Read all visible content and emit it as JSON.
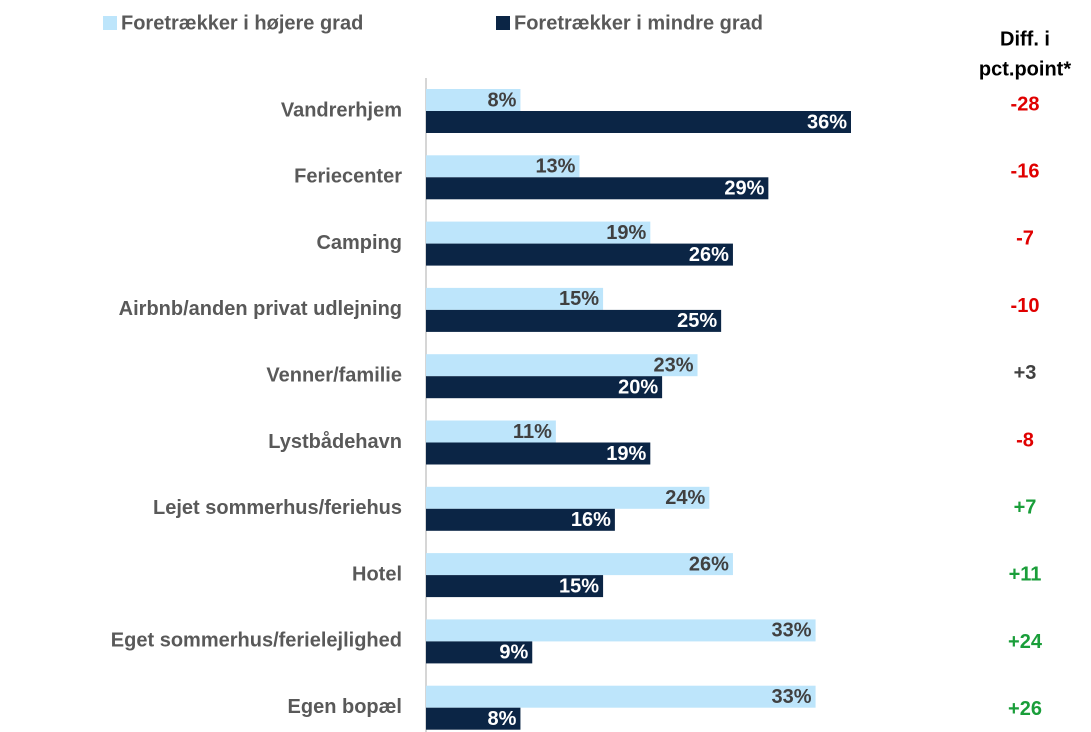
{
  "chart_data": {
    "type": "bar",
    "orientation": "horizontal",
    "categories": [
      "Vandrerhjem",
      "Feriecenter",
      "Camping",
      "Airbnb/anden privat udlejning",
      "Venner/familie",
      "Lystbådehavn",
      "Lejet sommerhus/feriehus",
      "Hotel",
      "Eget sommerhus/ferielejlighed",
      "Egen bopæl"
    ],
    "series": [
      {
        "name": "Foretrækker i højere grad",
        "color": "#bde5fb",
        "label_color": "#404040",
        "values": [
          8,
          13,
          19,
          15,
          23,
          11,
          24,
          26,
          33,
          33
        ],
        "value_labels": [
          "8%",
          "13%",
          "19%",
          "15%",
          "23%",
          "11%",
          "24%",
          "26%",
          "33%",
          "33%"
        ]
      },
      {
        "name": "Foretrækker i mindre grad",
        "color": "#0b2545",
        "label_color": "#ffffff",
        "values": [
          36,
          29,
          26,
          25,
          20,
          19,
          16,
          15,
          9,
          8
        ],
        "value_labels": [
          "36%",
          "29%",
          "26%",
          "25%",
          "20%",
          "19%",
          "16%",
          "15%",
          "9%",
          "8%"
        ]
      }
    ],
    "xlim": [
      0,
      36
    ],
    "diff": {
      "title": [
        "Diff. i",
        "pct.point*"
      ],
      "values": [
        -28,
        -16,
        -7,
        -10,
        3,
        -8,
        7,
        11,
        24,
        26
      ],
      "value_labels": [
        "-28",
        "-16",
        "-7",
        "-10",
        "+3",
        "-8",
        "+7",
        "+11",
        "+24",
        "+26"
      ],
      "colors": [
        "#e00000",
        "#e00000",
        "#e00000",
        "#e00000",
        "#404040",
        "#e00000",
        "#1a9e3a",
        "#1a9e3a",
        "#1a9e3a",
        "#1a9e3a"
      ]
    }
  }
}
